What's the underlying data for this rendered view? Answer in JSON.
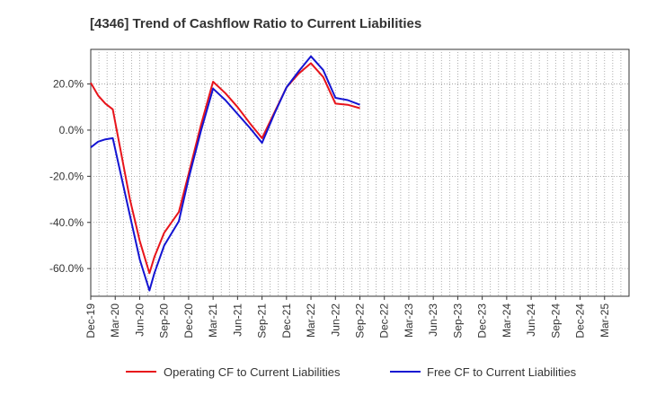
{
  "chart_data": {
    "type": "line",
    "title": "[4346]  Trend of Cashflow Ratio to Current Liabilities",
    "xlabel": "",
    "ylabel": "",
    "x_ticks": [
      "Dec-19",
      "Mar-20",
      "Jun-20",
      "Sep-20",
      "Dec-20",
      "Mar-21",
      "Jun-21",
      "Sep-21",
      "Dec-21",
      "Mar-22",
      "Jun-22",
      "Sep-22",
      "Dec-22",
      "Mar-23",
      "Jun-23",
      "Sep-23",
      "Dec-23",
      "Mar-24",
      "Jun-24",
      "Sep-24",
      "Dec-24",
      "Mar-25"
    ],
    "y_ticks": [
      "20.0%",
      "0.0%",
      "-20.0%",
      "-40.0%",
      "-60.0%"
    ],
    "y_tick_values": [
      20,
      0,
      -20,
      -40,
      -60
    ],
    "ylim": [
      -72,
      35
    ],
    "grid": true,
    "legend_position": "bottom",
    "series": [
      {
        "name": "Operating CF to Current Liabilities",
        "color": "#e8141b",
        "points": [
          [
            0,
            20.5
          ],
          [
            0.3,
            15
          ],
          [
            0.6,
            11.5
          ],
          [
            0.9,
            9
          ],
          [
            1.6,
            -30
          ],
          [
            2,
            -48
          ],
          [
            2.4,
            -62
          ],
          [
            2.6,
            -55
          ],
          [
            3,
            -44.5
          ],
          [
            3.6,
            -35.5
          ],
          [
            4,
            -19
          ],
          [
            4.5,
            2
          ],
          [
            5,
            21
          ],
          [
            5.5,
            16
          ],
          [
            6,
            10
          ],
          [
            6.5,
            3
          ],
          [
            7,
            -3.5
          ],
          [
            7.5,
            7.5
          ],
          [
            8,
            18.5
          ],
          [
            8.5,
            24.5
          ],
          [
            9,
            29
          ],
          [
            9.5,
            23
          ],
          [
            10,
            11.5
          ],
          [
            10.5,
            11
          ],
          [
            11,
            9.5
          ]
        ]
      },
      {
        "name": "Free CF to Current Liabilities",
        "color": "#1414d2",
        "points": [
          [
            0,
            -7.5
          ],
          [
            0.3,
            -5
          ],
          [
            0.6,
            -4
          ],
          [
            0.9,
            -3.5
          ],
          [
            1.6,
            -37
          ],
          [
            2,
            -56
          ],
          [
            2.4,
            -69.5
          ],
          [
            2.6,
            -62
          ],
          [
            3,
            -50
          ],
          [
            3.6,
            -39.5
          ],
          [
            4,
            -21
          ],
          [
            4.5,
            -0.5
          ],
          [
            5,
            18
          ],
          [
            5.5,
            13
          ],
          [
            6,
            7
          ],
          [
            6.5,
            1
          ],
          [
            7,
            -5.5
          ],
          [
            7.5,
            7
          ],
          [
            8,
            18.5
          ],
          [
            8.5,
            25.5
          ],
          [
            9,
            32
          ],
          [
            9.5,
            26
          ],
          [
            10,
            14
          ],
          [
            10.5,
            13
          ],
          [
            11,
            11
          ]
        ]
      }
    ]
  }
}
